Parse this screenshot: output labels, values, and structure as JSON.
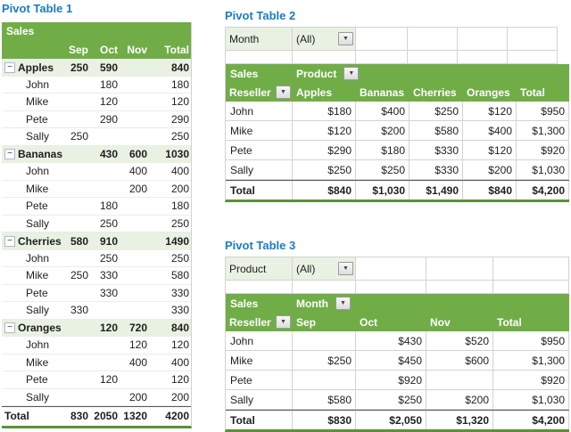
{
  "icons": {
    "collapse_glyph": "−",
    "dropdown_glyph": "▼"
  },
  "colors": {
    "header_green": "#70AD47",
    "light_green": "#E9F1E3",
    "title_blue": "#1B7BC4",
    "bottom_border_green": "#5B9133",
    "gridline_gray": "#D2D2D2"
  },
  "pt1": {
    "title": "Pivot Table 1",
    "corner_label": "Sales",
    "columns": [
      "Sep",
      "Oct",
      "Nov",
      "Total"
    ],
    "rows": [
      {
        "type": "group",
        "label": "Apples",
        "values": [
          "250",
          "590",
          "",
          "840"
        ]
      },
      {
        "type": "item",
        "label": "John",
        "values": [
          "",
          "180",
          "",
          "180"
        ]
      },
      {
        "type": "item",
        "label": "Mike",
        "values": [
          "",
          "120",
          "",
          "120"
        ]
      },
      {
        "type": "item",
        "label": "Pete",
        "values": [
          "",
          "290",
          "",
          "290"
        ]
      },
      {
        "type": "item",
        "label": "Sally",
        "values": [
          "250",
          "",
          "",
          "250"
        ]
      },
      {
        "type": "group",
        "label": "Bananas",
        "values": [
          "",
          "430",
          "600",
          "1030"
        ]
      },
      {
        "type": "item",
        "label": "John",
        "values": [
          "",
          "",
          "400",
          "400"
        ]
      },
      {
        "type": "item",
        "label": "Mike",
        "values": [
          "",
          "",
          "200",
          "200"
        ]
      },
      {
        "type": "item",
        "label": "Pete",
        "values": [
          "",
          "180",
          "",
          "180"
        ]
      },
      {
        "type": "item",
        "label": "Sally",
        "values": [
          "",
          "250",
          "",
          "250"
        ]
      },
      {
        "type": "group",
        "label": "Cherries",
        "values": [
          "580",
          "910",
          "",
          "1490"
        ]
      },
      {
        "type": "item",
        "label": "John",
        "values": [
          "",
          "250",
          "",
          "250"
        ]
      },
      {
        "type": "item",
        "label": "Mike",
        "values": [
          "250",
          "330",
          "",
          "580"
        ]
      },
      {
        "type": "item",
        "label": "Pete",
        "values": [
          "",
          "330",
          "",
          "330"
        ]
      },
      {
        "type": "item",
        "label": "Sally",
        "values": [
          "330",
          "",
          "",
          "330"
        ]
      },
      {
        "type": "group",
        "label": "Oranges",
        "values": [
          "",
          "120",
          "720",
          "840"
        ]
      },
      {
        "type": "item",
        "label": "John",
        "values": [
          "",
          "",
          "120",
          "120"
        ]
      },
      {
        "type": "item",
        "label": "Mike",
        "values": [
          "",
          "",
          "400",
          "400"
        ]
      },
      {
        "type": "item",
        "label": "Pete",
        "values": [
          "",
          "120",
          "",
          "120"
        ]
      },
      {
        "type": "item",
        "label": "Sally",
        "values": [
          "",
          "",
          "200",
          "200"
        ]
      },
      {
        "type": "grand",
        "label": "Total",
        "values": [
          "830",
          "2050",
          "1320",
          "4200"
        ]
      }
    ]
  },
  "pt2": {
    "title": "Pivot Table 2",
    "filter": {
      "label": "Month",
      "value": "(All)"
    },
    "row_dim": "Sales",
    "col_dim": "Product",
    "row_header": "Reseller",
    "columns": [
      "Apples",
      "Bananas",
      "Cherries",
      "Oranges",
      "Total"
    ],
    "rows": [
      {
        "type": "item",
        "label": "John",
        "values": [
          "$180",
          "$400",
          "$250",
          "$120",
          "$950"
        ]
      },
      {
        "type": "item",
        "label": "Mike",
        "values": [
          "$120",
          "$200",
          "$580",
          "$400",
          "$1,300"
        ]
      },
      {
        "type": "item",
        "label": "Pete",
        "values": [
          "$290",
          "$180",
          "$330",
          "$120",
          "$920"
        ]
      },
      {
        "type": "item",
        "label": "Sally",
        "values": [
          "$250",
          "$250",
          "$330",
          "$200",
          "$1,030"
        ]
      },
      {
        "type": "grand",
        "label": "Total",
        "values": [
          "$840",
          "$1,030",
          "$1,490",
          "$840",
          "$4,200"
        ]
      }
    ]
  },
  "pt3": {
    "title": "Pivot Table 3",
    "filter": {
      "label": "Product",
      "value": "(All)"
    },
    "row_dim": "Sales",
    "col_dim": "Month",
    "row_header": "Reseller",
    "columns": [
      "Sep",
      "Oct",
      "Nov",
      "Total"
    ],
    "rows": [
      {
        "type": "item",
        "label": "John",
        "values": [
          "",
          "$430",
          "$520",
          "$950"
        ]
      },
      {
        "type": "item",
        "label": "Mike",
        "values": [
          "$250",
          "$450",
          "$600",
          "$1,300"
        ]
      },
      {
        "type": "item",
        "label": "Pete",
        "values": [
          "",
          "$920",
          "",
          "$920"
        ]
      },
      {
        "type": "item",
        "label": "Sally",
        "values": [
          "$580",
          "$250",
          "$200",
          "$1,030"
        ]
      },
      {
        "type": "grand",
        "label": "Total",
        "values": [
          "$830",
          "$2,050",
          "$1,320",
          "$4,200"
        ]
      }
    ]
  }
}
